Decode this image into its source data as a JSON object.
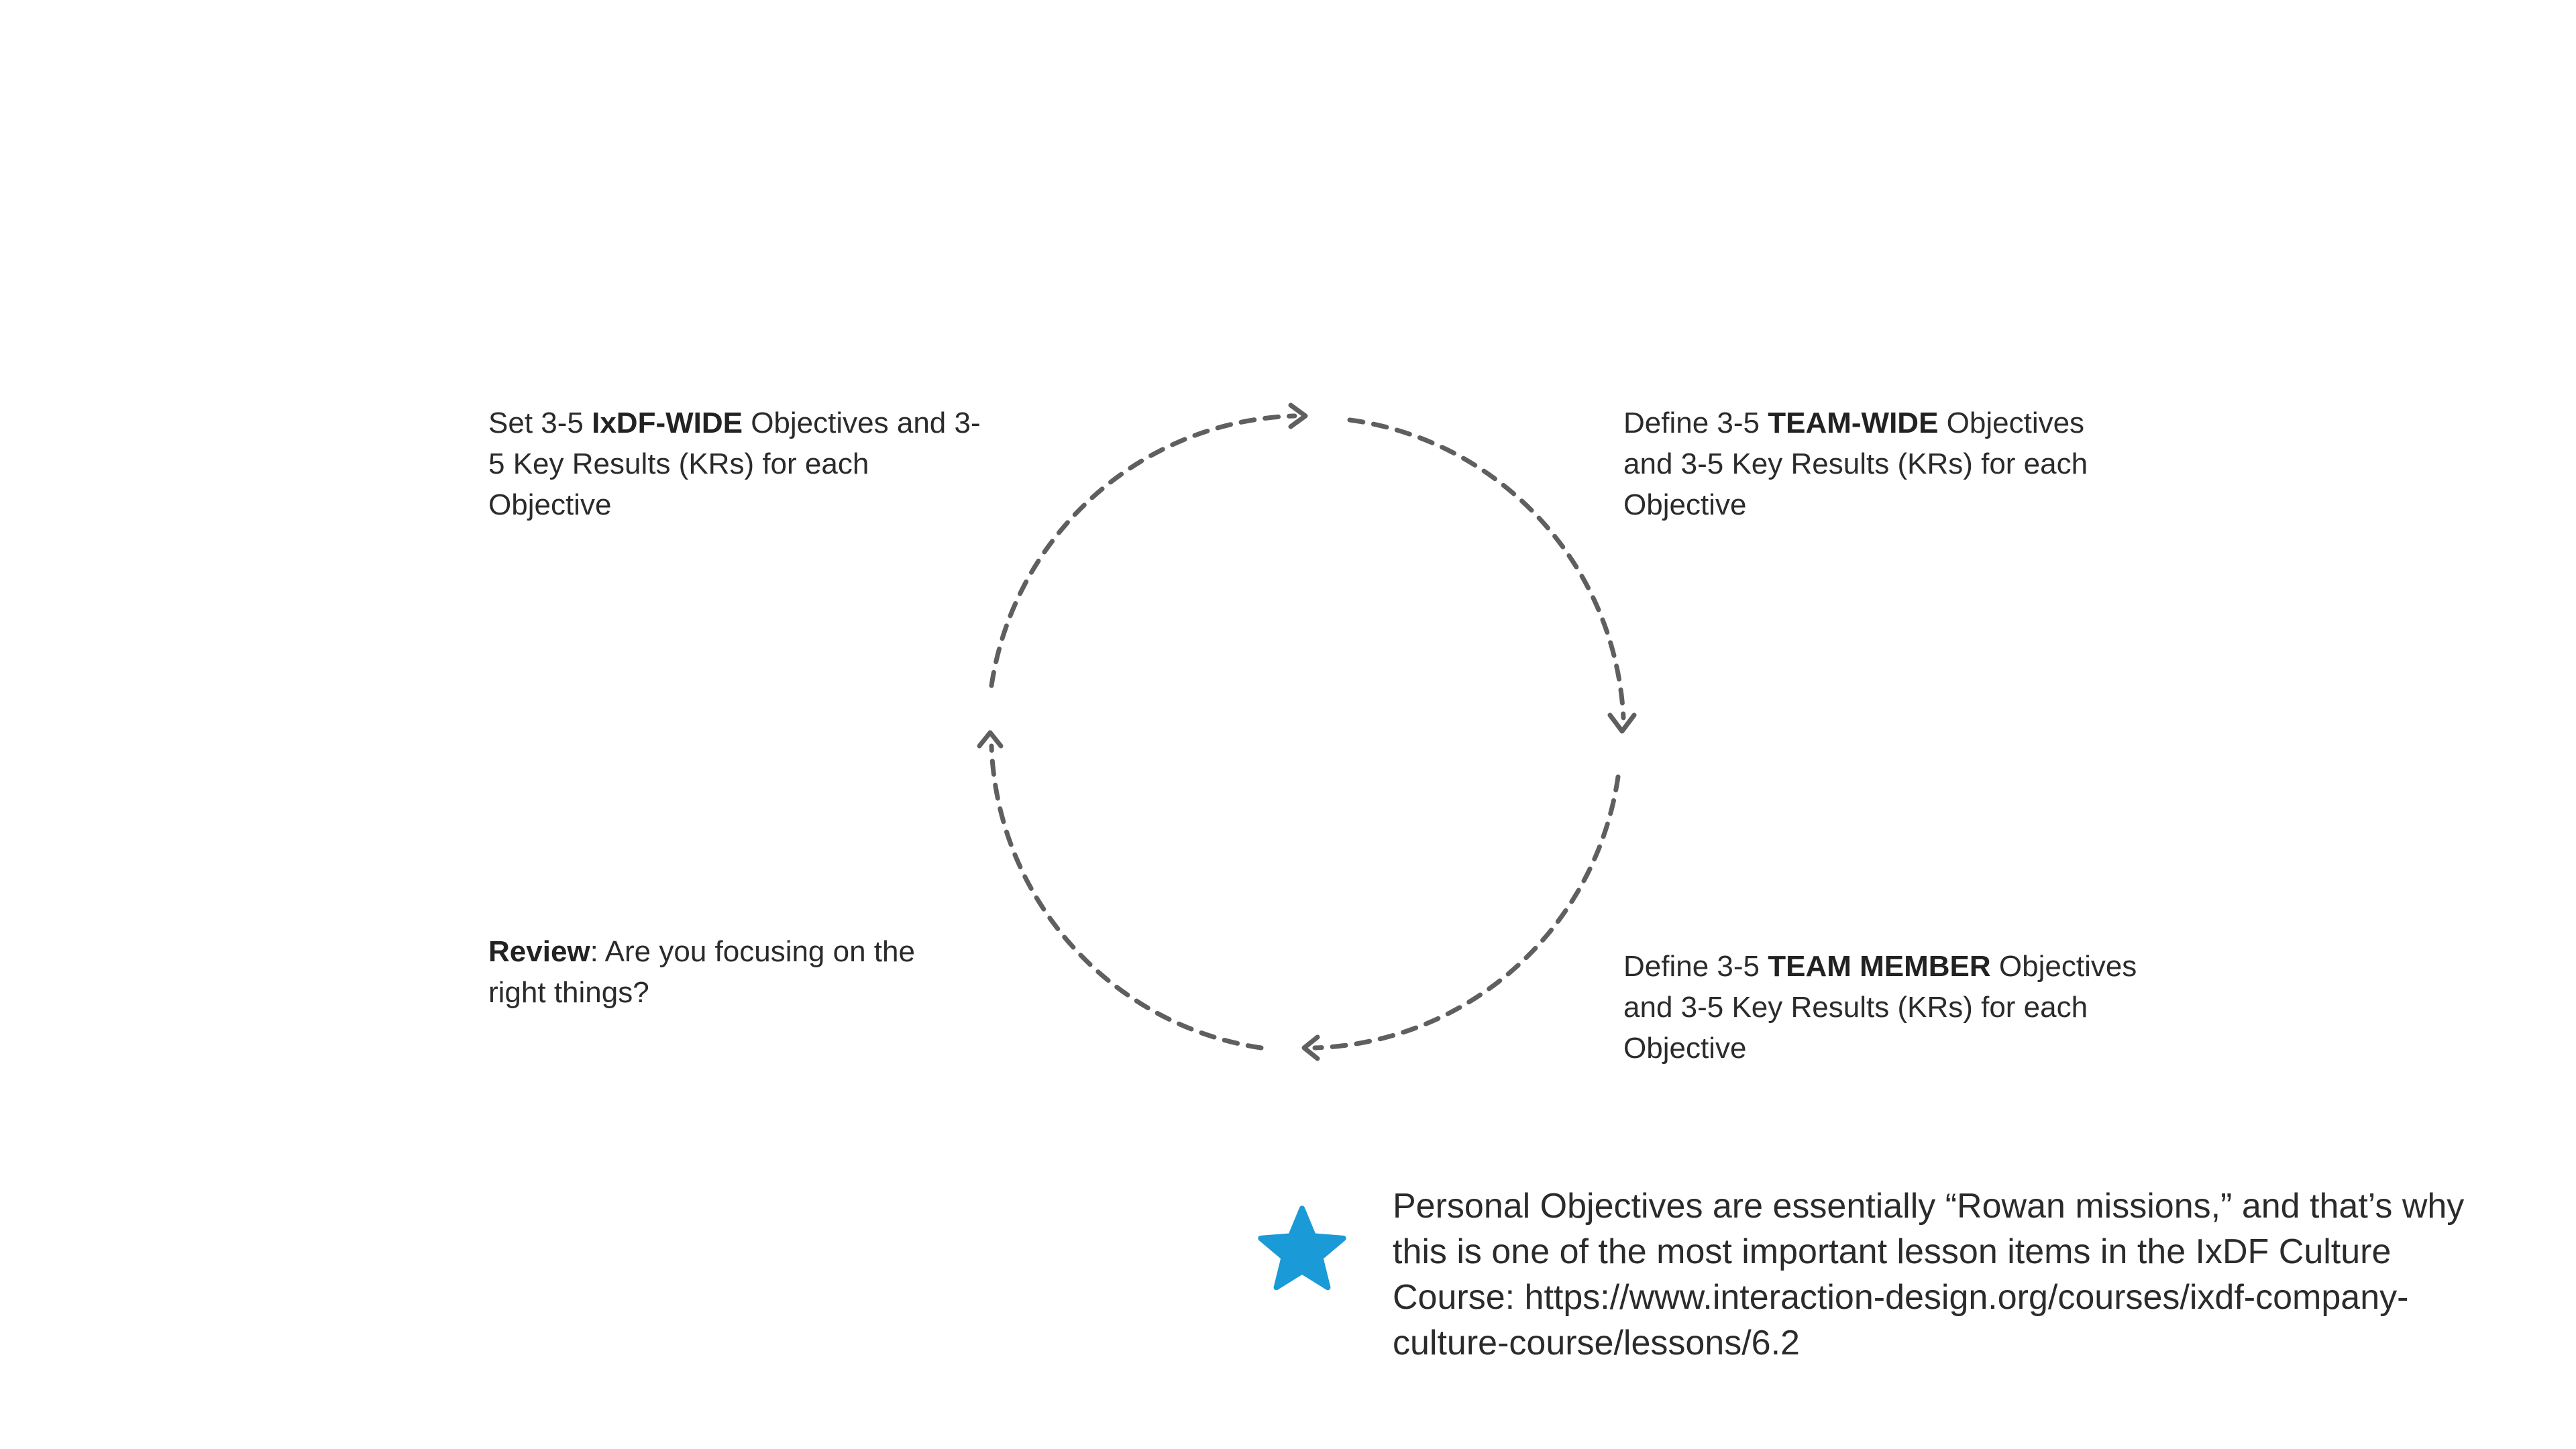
{
  "diagram": {
    "steps": {
      "top_left": {
        "prefix": "Set 3-5 ",
        "bold": "IxDF-WIDE",
        "suffix": " Objectives and 3-5 Key Results (KRs) for each Objective"
      },
      "top_right": {
        "prefix": "Define 3-5 ",
        "bold": "TEAM-WIDE",
        "suffix": " Objectives and 3-5 Key Results (KRs) for each Objective"
      },
      "bottom_right": {
        "prefix": "Define 3-5 ",
        "bold": "TEAM MEMBER",
        "suffix": " Objectives and 3-5 Key Results (KRs) for each Objective"
      },
      "bottom_left": {
        "bold": "Review",
        "suffix": ": Are you focusing on the right things?"
      }
    },
    "arrow_color": "#5f5f5f"
  },
  "note": {
    "icon": "star-icon",
    "icon_color": "#1a9ad6",
    "text": "Personal Objectives are essentially “Rowan missions,” and that’s why this is one of the most important lesson items in the IxDF Culture Course: https://www.interaction-design.org/courses/ixdf-company-culture-course/lessons/6.2"
  }
}
